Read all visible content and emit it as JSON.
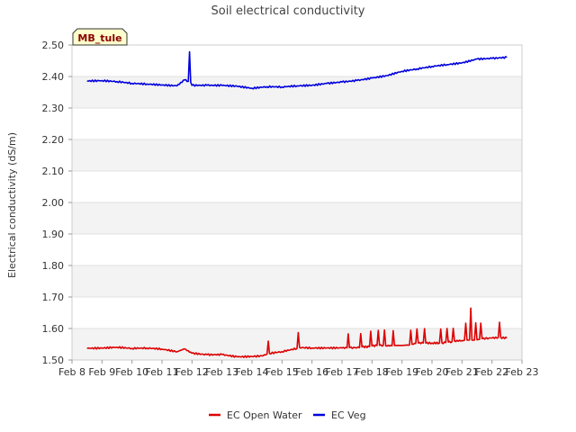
{
  "chart_data": {
    "type": "line",
    "title": "Soil electrical conductivity",
    "xlabel": "",
    "ylabel": "Electrical conductivity (dS/m)",
    "badge": "MB_tule",
    "ylim": [
      1.5,
      2.5
    ],
    "xlim": [
      "Feb 8",
      "Feb 23"
    ],
    "y_ticks": [
      "1.50",
      "1.60",
      "1.70",
      "1.80",
      "1.90",
      "2.00",
      "2.10",
      "2.20",
      "2.30",
      "2.40",
      "2.50"
    ],
    "x_ticks": [
      "Feb 8",
      "Feb 9",
      "Feb 10",
      "Feb 11",
      "Feb 12",
      "Feb 13",
      "Feb 14",
      "Feb 15",
      "Feb 16",
      "Feb 17",
      "Feb 18",
      "Feb 19",
      "Feb 20",
      "Feb 21",
      "Feb 22",
      "Feb 23"
    ],
    "grid": true,
    "legend_position": "bottom",
    "series": [
      {
        "name": "EC Open Water",
        "color": "#dd0000",
        "x": [
          "Feb 8 12:00",
          "Feb 9 00:00",
          "Feb 9 12:00",
          "Feb 10 00:00",
          "Feb 10 12:00",
          "Feb 11 00:00",
          "Feb 11 12:00",
          "Feb 11 18:00",
          "Feb 12 00:00",
          "Feb 12 12:00",
          "Feb 13 00:00",
          "Feb 13 12:00",
          "Feb 14 00:00",
          "Feb 14 09:00",
          "Feb 14 12:00",
          "Feb 14 13:00",
          "Feb 14 14:00",
          "Feb 15 00:00",
          "Feb 15 12:00",
          "Feb 15 13:00",
          "Feb 15 14:00",
          "Feb 16 00:00",
          "Feb 16 12:00",
          "Feb 17 00:00",
          "Feb 17 04:00",
          "Feb 17 05:00",
          "Feb 17 06:00",
          "Feb 17 14:00",
          "Feb 17 15:00",
          "Feb 17 16:00",
          "Feb 17 22:00",
          "Feb 17 23:00",
          "Feb 18 00:00",
          "Feb 18 04:00",
          "Feb 18 05:00",
          "Feb 18 06:00",
          "Feb 18 09:00",
          "Feb 18 10:00",
          "Feb 18 11:00",
          "Feb 18 16:00",
          "Feb 18 17:00",
          "Feb 18 18:00",
          "Feb 19 00:00",
          "Feb 19 06:00",
          "Feb 19 07:00",
          "Feb 19 08:00",
          "Feb 19 11:00",
          "Feb 19 12:00",
          "Feb 19 13:00",
          "Feb 19 17:00",
          "Feb 19 18:00",
          "Feb 19 19:00",
          "Feb 20 00:00",
          "Feb 20 06:00",
          "Feb 20 07:00",
          "Feb 20 08:00",
          "Feb 20 11:00",
          "Feb 20 12:00",
          "Feb 20 13:00",
          "Feb 20 16:00",
          "Feb 20 17:00",
          "Feb 20 18:00",
          "Feb 21 00:00",
          "Feb 21 02:00",
          "Feb 21 03:00",
          "Feb 21 04:00",
          "Feb 21 06:00",
          "Feb 21 07:00",
          "Feb 21 08:00",
          "Feb 21 10:00",
          "Feb 21 11:00",
          "Feb 21 12:00",
          "Feb 21 14:00",
          "Feb 21 15:00",
          "Feb 21 16:00",
          "Feb 22 00:00",
          "Feb 22 05:00",
          "Feb 22 06:00",
          "Feb 22 07:00",
          "Feb 22 12:00"
        ],
        "values": [
          1.537,
          1.537,
          1.539,
          1.535,
          1.536,
          1.533,
          1.525,
          1.535,
          1.522,
          1.518,
          1.519,
          1.512,
          1.513,
          1.515,
          1.52,
          1.56,
          1.52,
          1.525,
          1.535,
          1.585,
          1.538,
          1.537,
          1.538,
          1.539,
          1.54,
          1.585,
          1.541,
          1.541,
          1.585,
          1.542,
          1.542,
          1.59,
          1.543,
          1.544,
          1.592,
          1.545,
          1.545,
          1.595,
          1.546,
          1.547,
          1.595,
          1.548,
          1.548,
          1.549,
          1.595,
          1.55,
          1.551,
          1.597,
          1.552,
          1.552,
          1.598,
          1.553,
          1.554,
          1.555,
          1.6,
          1.556,
          1.557,
          1.602,
          1.558,
          1.558,
          1.6,
          1.559,
          1.56,
          1.561,
          1.615,
          1.562,
          1.563,
          1.665,
          1.564,
          1.565,
          1.62,
          1.566,
          1.567,
          1.618,
          1.568,
          1.569,
          1.57,
          1.618,
          1.569,
          1.568
        ]
      },
      {
        "name": "EC Veg",
        "color": "#0000dd",
        "x": [
          "Feb 8 12:00",
          "Feb 9 00:00",
          "Feb 9 12:00",
          "Feb 10 00:00",
          "Feb 10 12:00",
          "Feb 11 00:00",
          "Feb 11 12:00",
          "Feb 11 18:00",
          "Feb 11 21:00",
          "Feb 11 22:00",
          "Feb 11 23:00",
          "Feb 12 00:00",
          "Feb 12 12:00",
          "Feb 13 00:00",
          "Feb 13 12:00",
          "Feb 14 00:00",
          "Feb 14 12:00",
          "Feb 15 00:00",
          "Feb 15 12:00",
          "Feb 16 00:00",
          "Feb 16 12:00",
          "Feb 17 00:00",
          "Feb 17 12:00",
          "Feb 18 00:00",
          "Feb 18 12:00",
          "Feb 19 00:00",
          "Feb 19 12:00",
          "Feb 20 00:00",
          "Feb 20 12:00",
          "Feb 21 00:00",
          "Feb 21 12:00",
          "Feb 22 00:00",
          "Feb 22 12:00"
        ],
        "values": [
          2.385,
          2.387,
          2.385,
          2.38,
          2.378,
          2.375,
          2.372,
          2.39,
          2.385,
          2.478,
          2.38,
          2.37,
          2.37,
          2.37,
          2.368,
          2.362,
          2.368,
          2.368,
          2.372,
          2.374,
          2.38,
          2.384,
          2.388,
          2.395,
          2.402,
          2.415,
          2.422,
          2.43,
          2.436,
          2.442,
          2.455,
          2.458,
          2.462
        ]
      }
    ]
  }
}
